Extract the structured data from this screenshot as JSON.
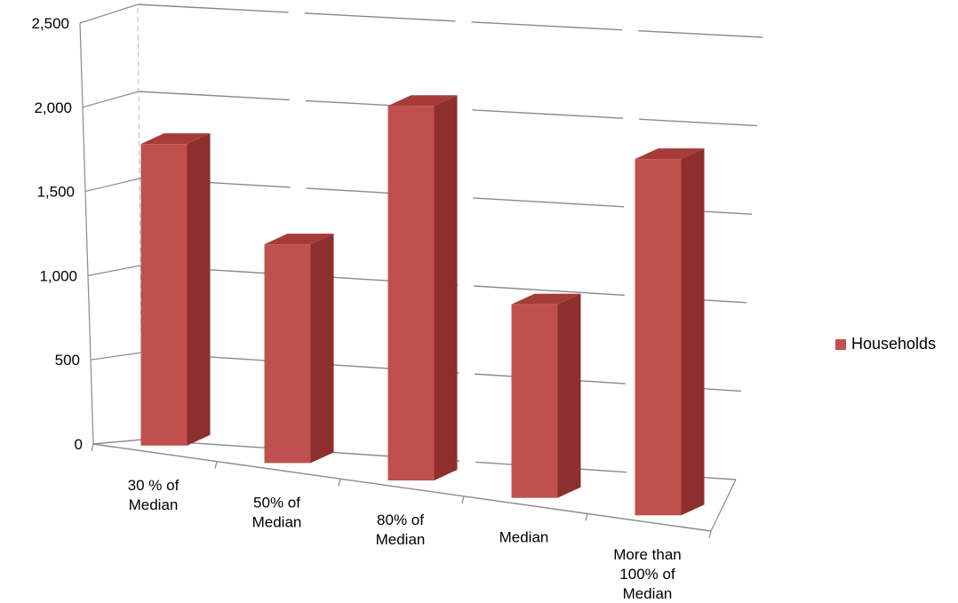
{
  "chart_data": {
    "type": "bar",
    "categories": [
      [
        "30 % of",
        "Median"
      ],
      [
        "50% of",
        "Median"
      ],
      [
        "80% of",
        "Median"
      ],
      [
        "Median"
      ],
      [
        "More than",
        "100% of",
        "Median"
      ]
    ],
    "series": [
      {
        "name": "Households",
        "values": [
          1860,
          1340,
          2280,
          1170,
          2140
        ]
      }
    ],
    "ylim": [
      0,
      2500
    ],
    "yticks": [
      "0",
      "500",
      "1,000",
      "1,500",
      "2,000",
      "2,500"
    ],
    "ytick_values": [
      0,
      500,
      1000,
      1500,
      2000,
      2500
    ],
    "grid": true,
    "legend_position": "right",
    "style": "3d-column"
  },
  "colors": {
    "bar_front": "#c0504d",
    "bar_side": "#8c2f2d",
    "bar_top": "#a63c39",
    "grid": "#8a8a8a"
  }
}
